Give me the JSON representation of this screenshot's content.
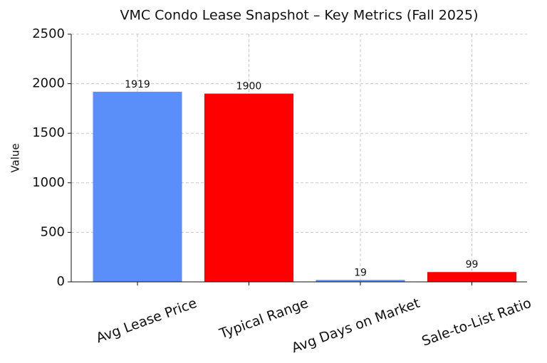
{
  "chart_data": {
    "type": "bar",
    "title": "VMC Condo Lease Snapshot – Key Metrics (Fall 2025)",
    "ylabel": "Value",
    "categories": [
      "Avg Lease Price",
      "Typical Range",
      "Avg Days on Market",
      "Sale-to-List Ratio"
    ],
    "values": [
      1919,
      1900,
      19,
      99
    ],
    "colors": [
      "#5a8ef9",
      "#ff0000",
      "#5a8ef9",
      "#ff0000"
    ],
    "ylim": [
      0,
      2500
    ],
    "yticks": [
      0,
      500,
      1000,
      1500,
      2000,
      2500
    ],
    "grid": true
  }
}
